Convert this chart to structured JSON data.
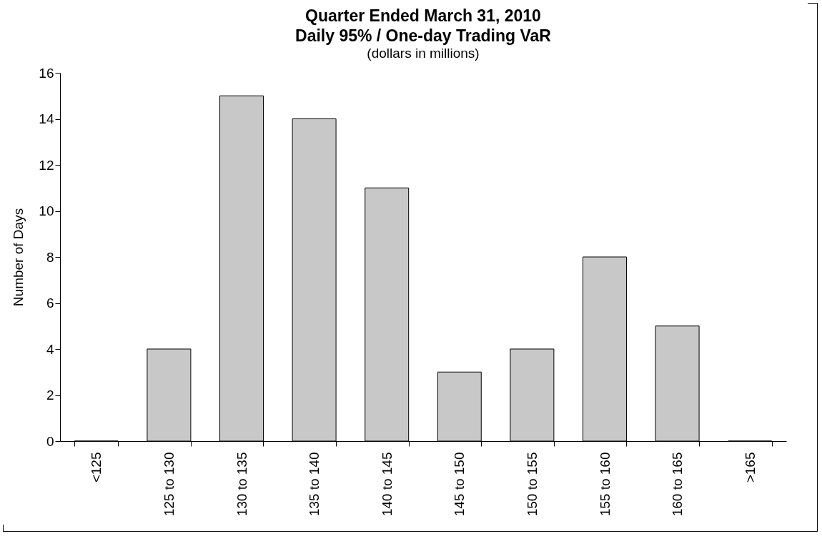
{
  "chart_data": {
    "type": "bar",
    "title": "Quarter Ended March 31, 2010\nDaily 95% / One-day Trading VaR",
    "subtitle": "(dollars in millions)",
    "ylabel": "Number of Days",
    "categories": [
      "<125",
      "125 to 130",
      "130 to 135",
      "135 to 140",
      "140 to 145",
      "145 to 150",
      "150 to 155",
      "155 to 160",
      "160 to 165",
      ">165"
    ],
    "values": [
      0,
      4,
      15,
      14,
      11,
      3,
      4,
      8,
      5,
      0
    ],
    "color": "#c8c8c8",
    "ylim": [
      0,
      16
    ],
    "yticks": [
      0,
      2,
      4,
      6,
      8,
      10,
      12,
      14,
      16
    ],
    "grid": false
  }
}
